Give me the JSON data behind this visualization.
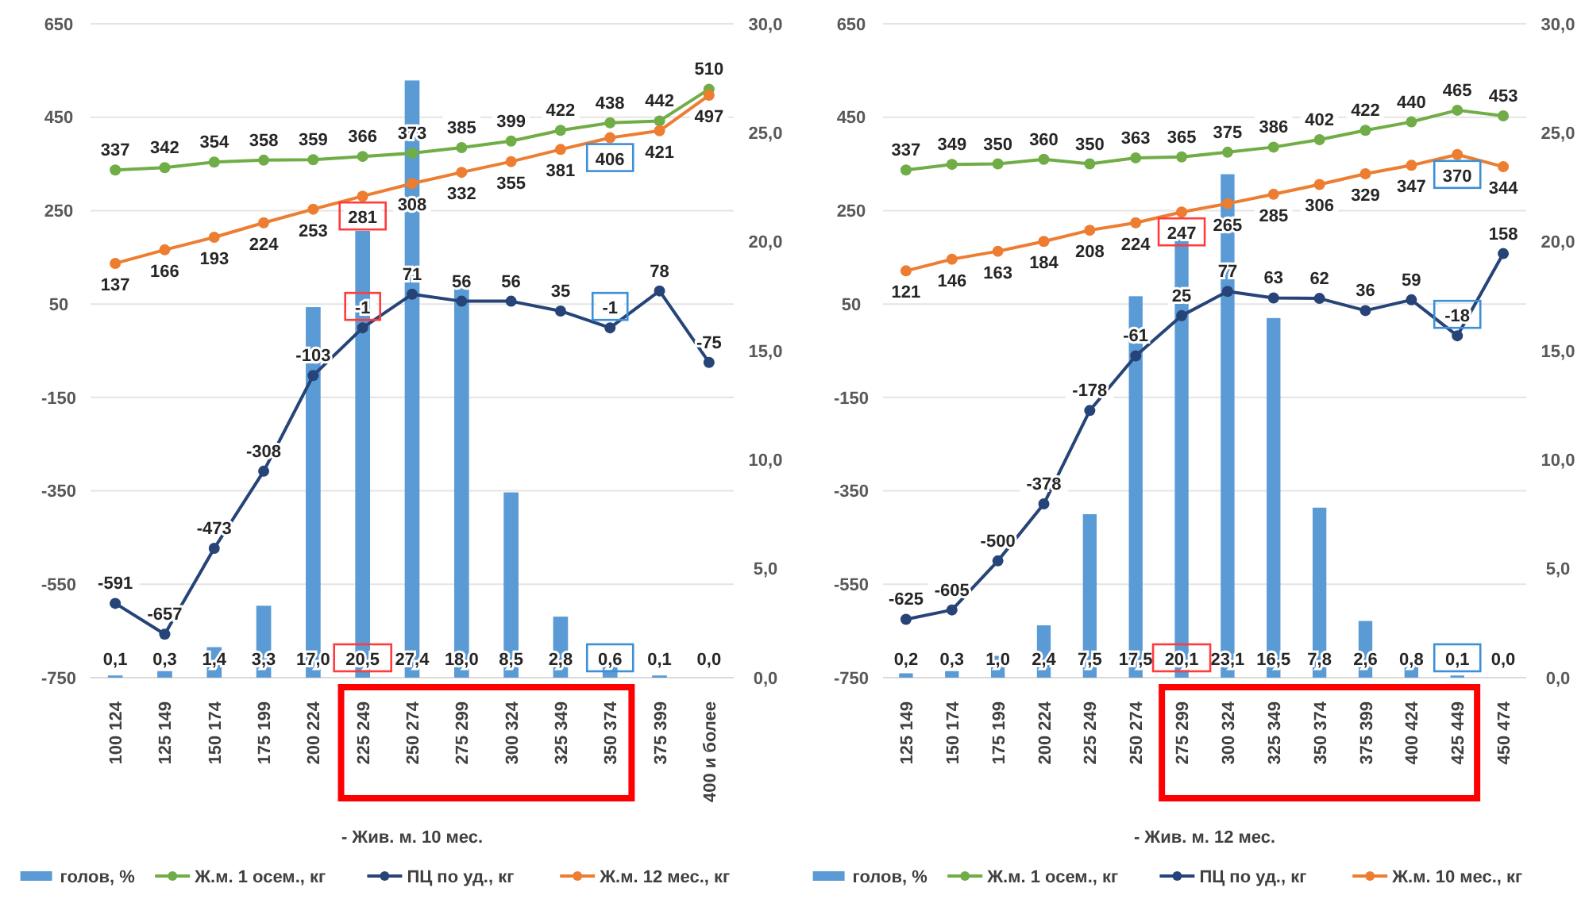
{
  "chart_data": [
    {
      "type": "bar",
      "xlabel": "- Жив. м. 10 мес.",
      "categories": [
        "100 124",
        "125 149",
        "150 174",
        "175 199",
        "200 224",
        "225 249",
        "250 274",
        "275 299",
        "300 324",
        "325 349",
        "350 374",
        "375 399",
        "400 и более"
      ],
      "series": [
        {
          "name": "голов, %",
          "axis": "y2",
          "color": "#5b9bd5",
          "values": [
            0.1,
            0.3,
            1.4,
            3.3,
            17.0,
            20.5,
            27.4,
            18.0,
            8.5,
            2.8,
            0.6,
            0.1,
            0.0
          ],
          "value_labels": [
            "0,1",
            "0,3",
            "1,4",
            "3,3",
            "17,0",
            "20,5",
            "27,4",
            "18,0",
            "8,5",
            "2,8",
            "0,6",
            "0,1",
            "0,0"
          ]
        },
        {
          "name": "Ж.м. 1 осем., кг",
          "type": "line",
          "color": "#70ad47",
          "values": [
            337,
            342,
            354,
            358,
            359,
            366,
            373,
            385,
            399,
            422,
            438,
            442,
            510
          ]
        },
        {
          "name": "ПЦ  по уд., кг",
          "type": "line",
          "color": "#264478",
          "values": [
            -591,
            -657,
            -473,
            -308,
            -103,
            -1,
            71,
            56,
            56,
            35,
            -1,
            78,
            -75
          ]
        },
        {
          "name": "Ж.м. 12 мес., кг",
          "type": "line",
          "color": "#ed7d31",
          "values": [
            137,
            166,
            193,
            224,
            253,
            281,
            308,
            332,
            355,
            381,
            406,
            421,
            497
          ]
        }
      ],
      "ylim": [
        -750,
        650
      ],
      "yticks": [
        -750,
        -550,
        -350,
        -150,
        50,
        250,
        450,
        650
      ],
      "y2lim": [
        0,
        30
      ],
      "y2ticks": [
        {
          "value": 0,
          "label": "0,0"
        },
        {
          "value": 5,
          "label": "5,0"
        },
        {
          "value": 10,
          "label": "10,0"
        },
        {
          "value": 15,
          "label": "15,0"
        },
        {
          "value": 20,
          "label": "20,0"
        },
        {
          "value": 25,
          "label": "25,0"
        },
        {
          "value": 30,
          "label": "30,0"
        }
      ],
      "grid": "y",
      "legend": "bottom",
      "marker": "circle",
      "data_labels": true
    },
    {
      "type": "bar",
      "xlabel": "- Жив. м. 12 мес.",
      "categories": [
        "125 149",
        "150 174",
        "175 199",
        "200 224",
        "225 249",
        "250 274",
        "275 299",
        "300 324",
        "325 349",
        "350 374",
        "375 399",
        "400 424",
        "425 449",
        "450 474"
      ],
      "series": [
        {
          "name": "голов, %",
          "axis": "y2",
          "color": "#5b9bd5",
          "values": [
            0.2,
            0.3,
            1.0,
            2.4,
            7.5,
            17.5,
            20.1,
            23.1,
            16.5,
            7.8,
            2.6,
            0.8,
            0.1,
            0.0
          ],
          "value_labels": [
            "0,2",
            "0,3",
            "1,0",
            "2,4",
            "7,5",
            "17,5",
            "20,1",
            "23,1",
            "16,5",
            "7,8",
            "2,6",
            "0,8",
            "0,1",
            "0,0"
          ]
        },
        {
          "name": "Ж.м. 1 осем., кг",
          "type": "line",
          "color": "#70ad47",
          "values": [
            337,
            349,
            350,
            360,
            350,
            363,
            365,
            375,
            386,
            402,
            422,
            440,
            465,
            453
          ]
        },
        {
          "name": "ПЦ  по уд., кг",
          "type": "line",
          "color": "#264478",
          "values": [
            -625,
            -605,
            -500,
            -378,
            -178,
            -61,
            25,
            77,
            63,
            62,
            36,
            59,
            -18,
            158
          ]
        },
        {
          "name": "Ж.м. 10 мес., кг",
          "type": "line",
          "color": "#ed7d31",
          "values": [
            121,
            146,
            163,
            184,
            208,
            224,
            247,
            265,
            285,
            306,
            329,
            347,
            370,
            344
          ]
        }
      ],
      "ylim": [
        -750,
        650
      ],
      "yticks": [
        -750,
        -550,
        -350,
        -150,
        50,
        250,
        450,
        650
      ],
      "y2lim": [
        0,
        30
      ],
      "y2ticks": [
        {
          "value": 0,
          "label": "0,0"
        },
        {
          "value": 5,
          "label": "5,0"
        },
        {
          "value": 10,
          "label": "10,0"
        },
        {
          "value": 15,
          "label": "15,0"
        },
        {
          "value": 20,
          "label": "20,0"
        },
        {
          "value": 25,
          "label": "25,0"
        },
        {
          "value": 30,
          "label": "30,0"
        }
      ],
      "grid": "y",
      "legend": "bottom",
      "marker": "circle",
      "data_labels": true
    }
  ]
}
